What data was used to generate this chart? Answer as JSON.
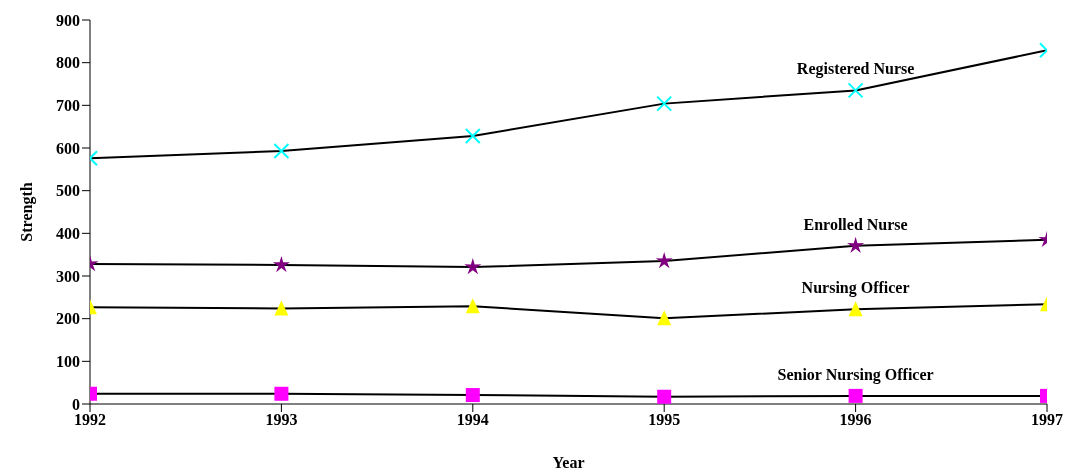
{
  "chart_data": {
    "type": "line",
    "xlabel": "Year",
    "ylabel": "Strength",
    "x": [
      1992,
      1993,
      1994,
      1995,
      1996,
      1997
    ],
    "xlim": [
      1992,
      1997
    ],
    "xticks": [
      1992,
      1993,
      1994,
      1995,
      1996,
      1997
    ],
    "ylim": [
      0,
      900
    ],
    "yticks": [
      0,
      100,
      200,
      300,
      400,
      500,
      600,
      700,
      800,
      900
    ],
    "grid": false,
    "legend": false,
    "series": [
      {
        "name": "Registered Nurse",
        "color": "#00ffff",
        "marker": "cross",
        "values": [
          576,
          593,
          628,
          704,
          735,
          829
        ]
      },
      {
        "name": "Enrolled Nurse",
        "color": "#800080",
        "marker": "star",
        "values": [
          328,
          326,
          321,
          335,
          371,
          385
        ]
      },
      {
        "name": "Nursing Officer",
        "color": "#ffff00",
        "marker": "triangle",
        "values": [
          227,
          224,
          229,
          201,
          222,
          234
        ]
      },
      {
        "name": "Senior Nursing Officer",
        "color": "#ff00ff",
        "marker": "square",
        "values": [
          24,
          24,
          21,
          17,
          19,
          19
        ]
      }
    ]
  }
}
